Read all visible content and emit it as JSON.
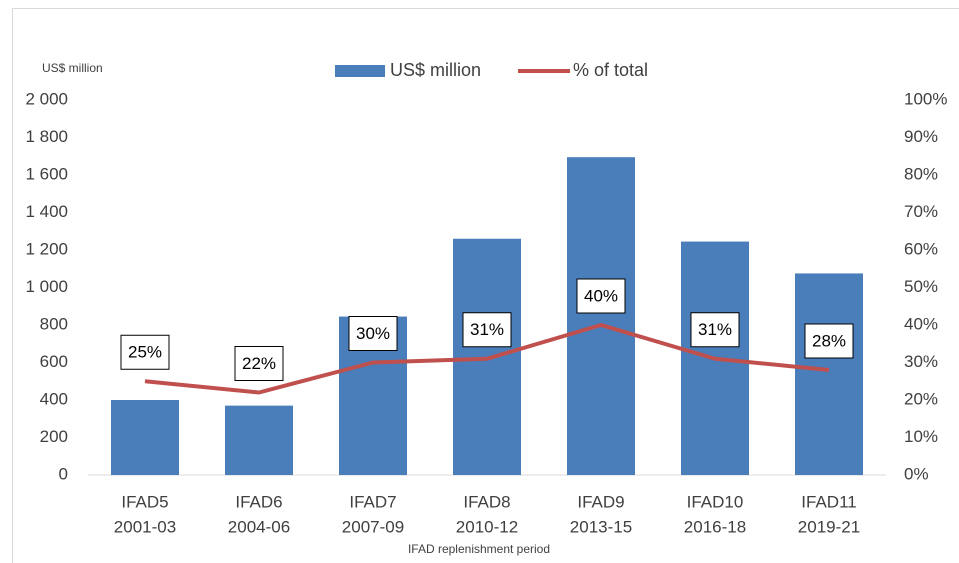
{
  "chart_data": {
    "type": "bar_line",
    "y_label": "US$ million",
    "x_label": "IFAD replenishment period",
    "categories": [
      [
        "IFAD5",
        "2001-03"
      ],
      [
        "IFAD6",
        "2004-06"
      ],
      [
        "IFAD7",
        "2007-09"
      ],
      [
        "IFAD8",
        "2010-12"
      ],
      [
        "IFAD9",
        "2013-15"
      ],
      [
        "IFAD10",
        "2016-18"
      ],
      [
        "IFAD11",
        "2019-21"
      ]
    ],
    "series": [
      {
        "name": "US$ million",
        "type": "bar",
        "color": "#4a7ebb",
        "values": [
          400,
          370,
          845,
          1260,
          1695,
          1245,
          1075
        ]
      },
      {
        "name": "% of total",
        "type": "line",
        "axis": "y2",
        "color": "#c0504d",
        "values": [
          25,
          22,
          30,
          31,
          40,
          31,
          28
        ],
        "value_labels": [
          "25%",
          "22%",
          "30%",
          "31%",
          "40%",
          "31%",
          "28%"
        ]
      }
    ],
    "ylim": [
      0,
      2000
    ],
    "yticks": [
      0,
      200,
      400,
      600,
      800,
      {
        "value": 1000,
        "label": "1 000"
      },
      {
        "value": 1200,
        "label": "1 200"
      },
      {
        "value": 1400,
        "label": "1 400"
      },
      {
        "value": 1600,
        "label": "1 600"
      },
      {
        "value": 1800,
        "label": "1 800"
      },
      {
        "value": 2000,
        "label": "2 000"
      }
    ],
    "y2lim": [
      0,
      100
    ],
    "y2ticks": [
      {
        "value": 0,
        "label": "0%"
      },
      {
        "value": 10,
        "label": "10%"
      },
      {
        "value": 20,
        "label": "20%"
      },
      {
        "value": 30,
        "label": "30%"
      },
      {
        "value": 40,
        "label": "40%"
      },
      {
        "value": 50,
        "label": "50%"
      },
      {
        "value": 60,
        "label": "60%"
      },
      {
        "value": 70,
        "label": "70%"
      },
      {
        "value": 80,
        "label": "80%"
      },
      {
        "value": 90,
        "label": "90%"
      },
      {
        "value": 100,
        "label": "100%"
      }
    ],
    "grid": false,
    "legend": "top"
  }
}
